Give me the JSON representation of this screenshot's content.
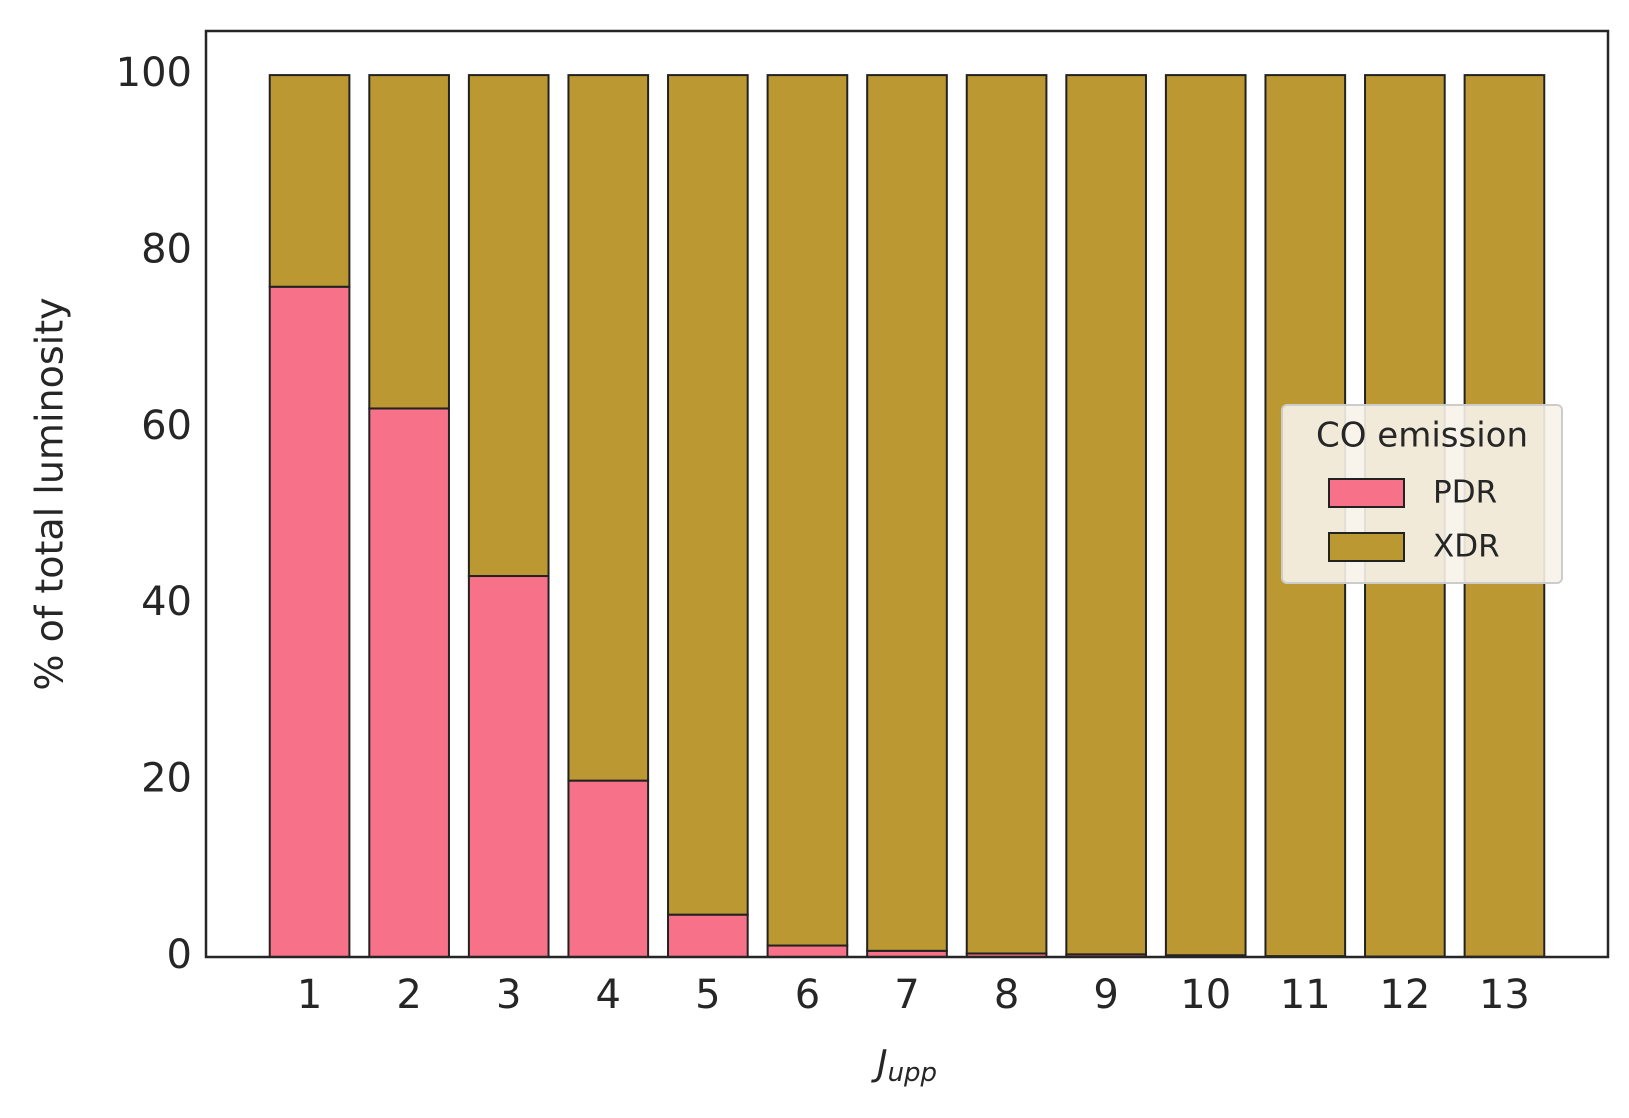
{
  "chart_data": {
    "type": "stacked_bar",
    "categories": [
      "1",
      "2",
      "3",
      "4",
      "5",
      "6",
      "7",
      "8",
      "9",
      "10",
      "11",
      "12",
      "13"
    ],
    "series": [
      {
        "name": "PDR",
        "color": "#f77189",
        "values": [
          76,
          62.2,
          43.2,
          20,
          4.8,
          1.3,
          0.7,
          0.4,
          0.3,
          0.2,
          0.1,
          0.05,
          0.03
        ]
      },
      {
        "name": "XDR",
        "color": "#bb9832",
        "values": [
          24,
          37.8,
          56.8,
          80,
          95.2,
          98.7,
          99.3,
          99.6,
          99.7,
          99.8,
          99.9,
          99.95,
          99.97
        ]
      }
    ],
    "ylim": [
      0,
      105
    ],
    "yticks": [
      0,
      20,
      40,
      60,
      80,
      100
    ],
    "y_label": "% of total luminosity",
    "x_label": {
      "main": "J",
      "sub": "upp"
    },
    "legend_title": "CO emission",
    "legend_position": "center right",
    "grid": false
  }
}
